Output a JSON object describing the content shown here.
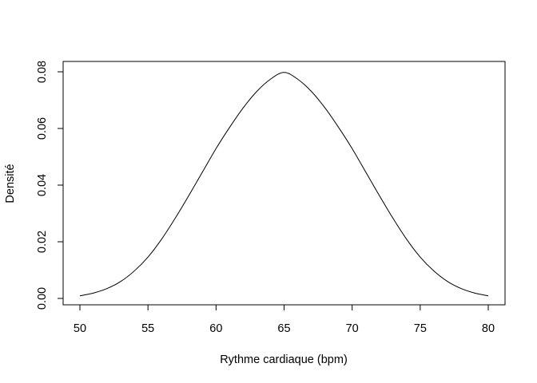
{
  "chart_data": {
    "type": "line",
    "title": "",
    "xlabel": "Rythme cardiaque (bpm)",
    "ylabel": "Densité",
    "xlim": [
      50,
      80
    ],
    "ylim": [
      0,
      0.08
    ],
    "x_ticks": [
      50,
      55,
      60,
      65,
      70,
      75,
      80
    ],
    "x_tick_labels": [
      "50",
      "55",
      "60",
      "65",
      "70",
      "75",
      "80"
    ],
    "y_ticks": [
      0,
      0.02,
      0.04,
      0.06,
      0.08
    ],
    "y_tick_labels": [
      "0.00",
      "0.02",
      "0.04",
      "0.06",
      "0.08"
    ],
    "grid": false,
    "series": [
      {
        "x": [
          50,
          51,
          52,
          53,
          54,
          55,
          56,
          57,
          58,
          59,
          60,
          61,
          62,
          63,
          64,
          65,
          66,
          67,
          68,
          69,
          70,
          71,
          72,
          73,
          74,
          75,
          76,
          77,
          78,
          79,
          80
        ],
        "y": [
          0.0009,
          0.0019,
          0.0035,
          0.006,
          0.0097,
          0.0146,
          0.0209,
          0.0283,
          0.0363,
          0.0446,
          0.0529,
          0.0604,
          0.0673,
          0.0731,
          0.0774,
          0.0798,
          0.0774,
          0.0731,
          0.0673,
          0.0604,
          0.0529,
          0.0446,
          0.0363,
          0.0283,
          0.0209,
          0.0146,
          0.0097,
          0.006,
          0.0035,
          0.0019,
          0.0009
        ],
        "color": "#000000"
      }
    ]
  }
}
